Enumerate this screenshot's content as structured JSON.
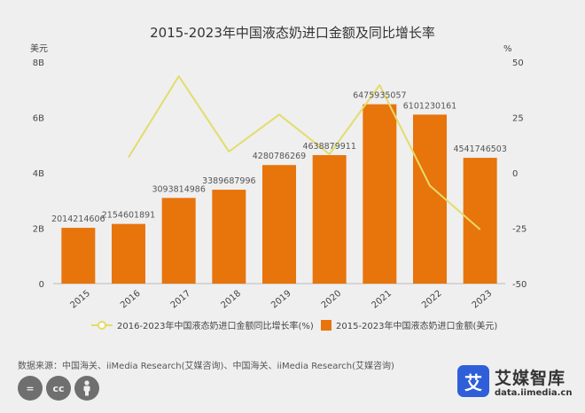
{
  "chart_data": {
    "type": "bar+line",
    "title": "2015-2023年中国液态奶进口金额及同比增长率",
    "left_axis_unit": "美元",
    "right_axis_unit": "%",
    "categories": [
      "2015",
      "2016",
      "2017",
      "2018",
      "2019",
      "2020",
      "2021",
      "2022",
      "2023"
    ],
    "left_ticks": [
      "0",
      "2B",
      "4B",
      "6B",
      "8B"
    ],
    "right_ticks": [
      "-50",
      "-25",
      "0",
      "25",
      "50"
    ],
    "ylim_left": [
      0,
      8000000000
    ],
    "ylim_right": [
      -50,
      50
    ],
    "series": [
      {
        "name": "2015-2023年中国液态奶进口金额(美元)",
        "type": "bar",
        "axis": "left",
        "color": "#e8740c",
        "values": [
          2014214606,
          2154601891,
          3093814986,
          3389687996,
          4280786269,
          4638879911,
          6475935057,
          6101230161,
          4541746503
        ],
        "labels": [
          "2014214606",
          "2154601891",
          "3093814986",
          "3389687996",
          "4280786269",
          "4638879911",
          "6475935057",
          "6101230161",
          "4541746503"
        ]
      },
      {
        "name": "2016-2023年中国液态奶进口金额同比增长率(%)",
        "type": "line",
        "axis": "right",
        "color": "#e3dc6a",
        "values": [
          null,
          7.0,
          43.6,
          9.6,
          26.3,
          8.4,
          39.6,
          -5.8,
          -25.6
        ]
      }
    ],
    "legend_position": "bottom",
    "grid": false
  },
  "source_note": "数据来源：中国海关、iiMedia Research(艾媒咨询)、中国海关、iiMedia Research(艾媒咨询)",
  "cc_icons": [
    "=",
    "cc",
    "i"
  ],
  "brand": {
    "logo_char": "艾",
    "name": "艾媒智库",
    "url": "data.iimedia.cn",
    "color": "#2f5fd8"
  }
}
